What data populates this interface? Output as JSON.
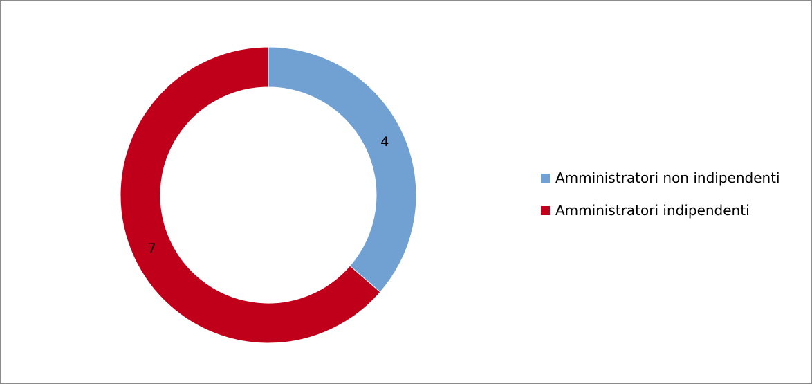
{
  "chart_data": {
    "type": "pie",
    "variant": "donut",
    "title": "",
    "categories": [
      "Amministratori non indipendenti",
      "Amministratori indipendenti"
    ],
    "values": [
      4,
      7
    ],
    "data_labels": [
      "4",
      "7"
    ],
    "colors": [
      "#71A1D3",
      "#C0001A"
    ],
    "legend": "right",
    "legend_entries": [
      {
        "label": "Amministratori non indipendenti",
        "color": "#71A1D3"
      },
      {
        "label": "Amministratori indipendenti",
        "color": "#C0001A"
      }
    ]
  }
}
